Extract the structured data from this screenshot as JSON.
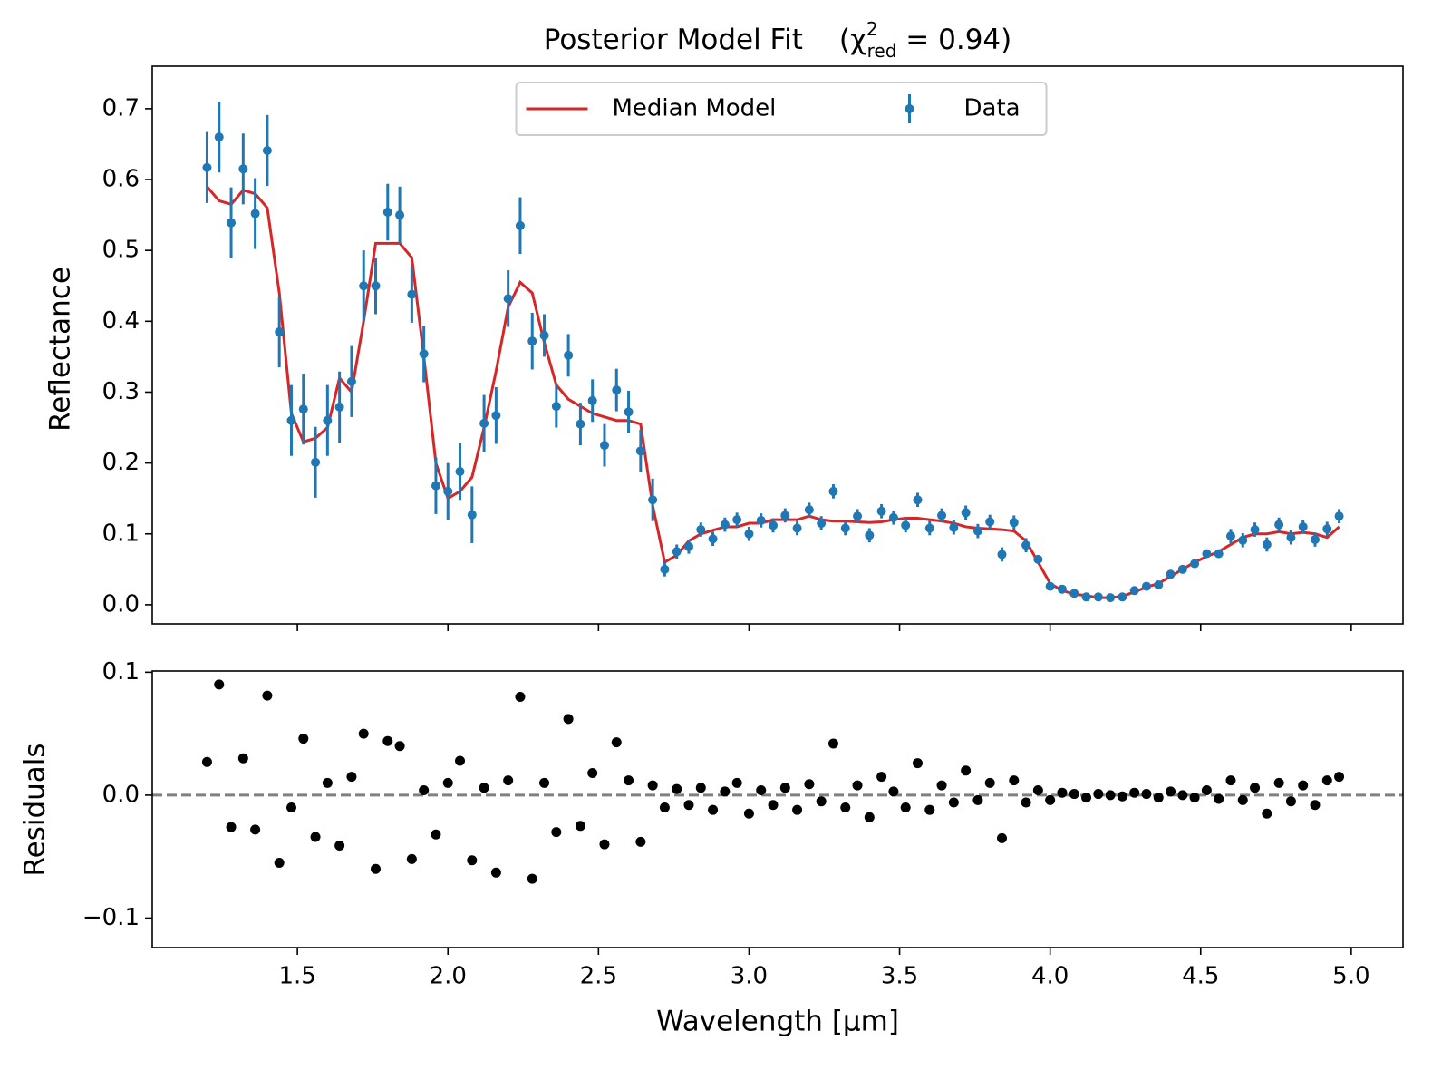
{
  "chart_data": [
    {
      "type": "line",
      "title": {
        "main": "Posterior Model Fit",
        "open": "(χ",
        "sup": "2",
        "sub": "red",
        "close": " = 0.94)"
      },
      "ylabel": "Reflectance",
      "x": [
        1.2,
        1.24,
        1.28,
        1.32,
        1.36,
        1.4,
        1.44,
        1.48,
        1.52,
        1.56,
        1.6,
        1.64,
        1.68,
        1.72,
        1.76,
        1.8,
        1.84,
        1.88,
        1.92,
        1.96,
        2.0,
        2.04,
        2.08,
        2.12,
        2.16,
        2.2,
        2.24,
        2.28,
        2.32,
        2.36,
        2.4,
        2.44,
        2.48,
        2.52,
        2.56,
        2.6,
        2.64,
        2.68,
        2.72,
        2.76,
        2.8,
        2.84,
        2.88,
        2.92,
        2.96,
        3.0,
        3.04,
        3.08,
        3.12,
        3.16,
        3.2,
        3.24,
        3.28,
        3.32,
        3.36,
        3.4,
        3.44,
        3.48,
        3.52,
        3.56,
        3.6,
        3.64,
        3.68,
        3.72,
        3.76,
        3.8,
        3.84,
        3.88,
        3.92,
        3.96,
        4.0,
        4.04,
        4.08,
        4.12,
        4.16,
        4.2,
        4.24,
        4.28,
        4.32,
        4.36,
        4.4,
        4.44,
        4.48,
        4.52,
        4.56,
        4.6,
        4.64,
        4.68,
        4.72,
        4.76,
        4.8,
        4.84,
        4.88,
        4.92,
        4.96
      ],
      "series": [
        {
          "name": "Median Model",
          "color": "#d62728",
          "values": [
            0.59,
            0.57,
            0.565,
            0.585,
            0.58,
            0.56,
            0.44,
            0.27,
            0.23,
            0.235,
            0.25,
            0.32,
            0.3,
            0.4,
            0.51,
            0.51,
            0.51,
            0.49,
            0.35,
            0.2,
            0.15,
            0.16,
            0.18,
            0.25,
            0.33,
            0.42,
            0.455,
            0.44,
            0.37,
            0.31,
            0.29,
            0.28,
            0.27,
            0.265,
            0.26,
            0.26,
            0.255,
            0.14,
            0.06,
            0.07,
            0.09,
            0.1,
            0.105,
            0.11,
            0.11,
            0.115,
            0.115,
            0.12,
            0.12,
            0.12,
            0.125,
            0.12,
            0.118,
            0.118,
            0.117,
            0.116,
            0.117,
            0.12,
            0.122,
            0.122,
            0.12,
            0.118,
            0.115,
            0.11,
            0.108,
            0.107,
            0.106,
            0.104,
            0.09,
            0.06,
            0.03,
            0.02,
            0.015,
            0.013,
            0.01,
            0.01,
            0.012,
            0.018,
            0.025,
            0.03,
            0.04,
            0.05,
            0.06,
            0.068,
            0.075,
            0.085,
            0.095,
            0.1,
            0.1,
            0.103,
            0.1,
            0.102,
            0.1,
            0.095,
            0.11
          ]
        },
        {
          "name": "Data",
          "color": "#1f77b4",
          "values": [
            0.617,
            0.66,
            0.539,
            0.615,
            0.552,
            0.641,
            0.385,
            0.26,
            0.276,
            0.201,
            0.26,
            0.279,
            0.315,
            0.45,
            0.45,
            0.554,
            0.55,
            0.438,
            0.354,
            0.168,
            0.16,
            0.188,
            0.127,
            0.256,
            0.267,
            0.432,
            0.535,
            0.372,
            0.38,
            0.28,
            0.352,
            0.255,
            0.288,
            0.225,
            0.303,
            0.272,
            0.217,
            0.148,
            0.05,
            0.075,
            0.082,
            0.106,
            0.093,
            0.113,
            0.12,
            0.1,
            0.119,
            0.112,
            0.126,
            0.108,
            0.134,
            0.115,
            0.16,
            0.108,
            0.125,
            0.098,
            0.132,
            0.123,
            0.112,
            0.148,
            0.108,
            0.126,
            0.109,
            0.13,
            0.104,
            0.117,
            0.071,
            0.116,
            0.084,
            0.064,
            0.026,
            0.022,
            0.016,
            0.011,
            0.011,
            0.01,
            0.011,
            0.02,
            0.026,
            0.028,
            0.043,
            0.05,
            0.058,
            0.072,
            0.072,
            0.097,
            0.091,
            0.106,
            0.085,
            0.113,
            0.095,
            0.11,
            0.092,
            0.107,
            0.125
          ],
          "errors": [
            0.05,
            0.05,
            0.05,
            0.05,
            0.05,
            0.05,
            0.05,
            0.05,
            0.05,
            0.05,
            0.05,
            0.05,
            0.05,
            0.05,
            0.04,
            0.04,
            0.04,
            0.04,
            0.04,
            0.04,
            0.04,
            0.04,
            0.04,
            0.04,
            0.04,
            0.04,
            0.04,
            0.04,
            0.03,
            0.03,
            0.03,
            0.03,
            0.03,
            0.03,
            0.03,
            0.03,
            0.03,
            0.03,
            0.01,
            0.01,
            0.01,
            0.01,
            0.01,
            0.01,
            0.01,
            0.01,
            0.01,
            0.01,
            0.01,
            0.01,
            0.01,
            0.01,
            0.01,
            0.01,
            0.01,
            0.01,
            0.01,
            0.01,
            0.01,
            0.01,
            0.01,
            0.01,
            0.01,
            0.01,
            0.01,
            0.01,
            0.01,
            0.01,
            0.01,
            0.005,
            0.005,
            0.005,
            0.005,
            0.005,
            0.005,
            0.005,
            0.005,
            0.005,
            0.005,
            0.005,
            0.005,
            0.005,
            0.005,
            0.005,
            0.005,
            0.01,
            0.01,
            0.01,
            0.01,
            0.01,
            0.01,
            0.01,
            0.01,
            0.01,
            0.01
          ]
        }
      ],
      "ylim": [
        -0.027,
        0.76
      ],
      "yticks": [
        {
          "value": 0,
          "label": "0.0"
        },
        0.1,
        0.2,
        0.3,
        0.4,
        0.5,
        0.6,
        0.7
      ],
      "legend": "upper center"
    },
    {
      "type": "scatter",
      "ylabel": "Residuals",
      "xlabel": "Wavelength [μm]",
      "sharex": true,
      "color": "#000000",
      "values": [
        0.027,
        0.09,
        -0.026,
        0.03,
        -0.028,
        0.081,
        -0.055,
        -0.01,
        0.046,
        -0.034,
        0.01,
        -0.041,
        0.015,
        0.05,
        -0.06,
        0.044,
        0.04,
        -0.052,
        0.004,
        -0.032,
        0.01,
        0.028,
        -0.053,
        0.006,
        -0.063,
        0.012,
        0.08,
        -0.068,
        0.01,
        -0.03,
        0.062,
        -0.025,
        0.018,
        -0.04,
        0.043,
        0.012,
        -0.038,
        0.008,
        -0.01,
        0.005,
        -0.008,
        0.006,
        -0.012,
        0.003,
        0.01,
        -0.015,
        0.004,
        -0.008,
        0.006,
        -0.012,
        0.009,
        -0.005,
        0.042,
        -0.01,
        0.008,
        -0.018,
        0.015,
        0.003,
        -0.01,
        0.026,
        -0.012,
        0.008,
        -0.006,
        0.02,
        -0.004,
        0.01,
        -0.035,
        0.012,
        -0.006,
        0.004,
        -0.004,
        0.002,
        0.001,
        -0.002,
        0.001,
        0.0,
        -0.001,
        0.002,
        0.001,
        -0.002,
        0.003,
        0.0,
        -0.002,
        0.004,
        -0.003,
        0.012,
        -0.004,
        0.006,
        -0.015,
        0.01,
        -0.005,
        0.008,
        -0.008,
        0.012,
        0.015
      ],
      "hline": 0,
      "xlim": [
        1.018,
        5.172
      ],
      "xticks": [
        1.5,
        {
          "value": 2,
          "label": "2.0"
        },
        2.5,
        {
          "value": 3,
          "label": "3.0"
        },
        3.5,
        {
          "value": 4,
          "label": "4.0"
        },
        4.5,
        {
          "value": 5,
          "label": "5.0"
        }
      ],
      "ylim": [
        -0.124,
        0.101
      ],
      "yticks": [
        {
          "value": -0.1,
          "label": "−0.1"
        },
        {
          "value": 0,
          "label": "0.0"
        },
        0.1
      ]
    }
  ]
}
